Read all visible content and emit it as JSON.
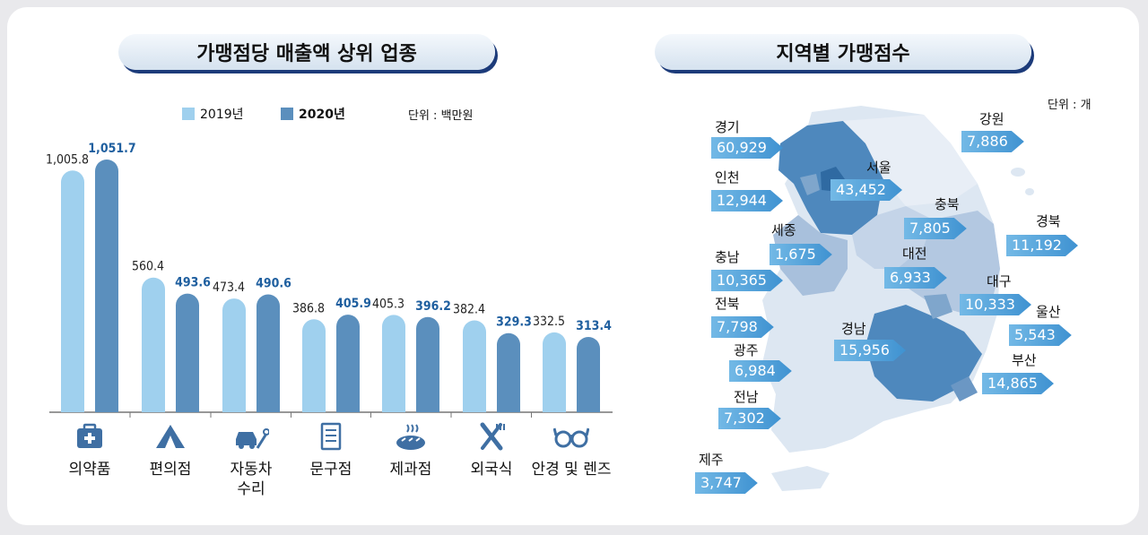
{
  "left_title": "가맹점당 매출액 상위 업종",
  "right_title": "지역별 가맹점수",
  "legend": {
    "y2019": "2019년",
    "y2020": "2020년"
  },
  "left_unit": "단위 : 백만원",
  "right_unit": "단위 : 개",
  "colors": {
    "y2019": "#9fd0ee",
    "y2020": "#5b8fbd",
    "label2020": "#1f5f9f",
    "map_dark": "#4e88bd",
    "map_mid": "#a8c0dc",
    "map_light": "#dde7f2"
  },
  "chart_data": {
    "type": "bar",
    "categories": [
      "의약품",
      "편의점",
      "자동차 수리",
      "문구점",
      "제과점",
      "외국식",
      "안경 및 렌즈"
    ],
    "category_lines": [
      [
        "의약품"
      ],
      [
        "편의점"
      ],
      [
        "자동차",
        "수리"
      ],
      [
        "문구점"
      ],
      [
        "제과점"
      ],
      [
        "외국식"
      ],
      [
        "안경 및 렌즈"
      ]
    ],
    "category_icons": [
      "first-aid-icon",
      "tent-icon",
      "car-repair-icon",
      "notebook-icon",
      "bread-icon",
      "fork-knife-icon",
      "glasses-icon"
    ],
    "series": [
      {
        "name": "2019년",
        "values": [
          1005.8,
          560.4,
          473.4,
          386.8,
          405.3,
          382.4,
          332.5
        ],
        "labels": [
          "1,005.8",
          "560.4",
          "473.4",
          "386.8",
          "405.3",
          "382.4",
          "332.5"
        ]
      },
      {
        "name": "2020년",
        "values": [
          1051.7,
          493.6,
          490.6,
          405.9,
          396.2,
          329.3,
          313.4
        ],
        "labels": [
          "1,051.7",
          "493.6",
          "490.6",
          "405.9",
          "396.2",
          "329.3",
          "313.4"
        ]
      }
    ],
    "unit": "단위 : 백만원"
  },
  "regions": [
    {
      "name": "경기",
      "value": "60,929"
    },
    {
      "name": "인천",
      "value": "12,944"
    },
    {
      "name": "서울",
      "value": "43,452"
    },
    {
      "name": "강원",
      "value": "7,886"
    },
    {
      "name": "충북",
      "value": "7,805"
    },
    {
      "name": "경북",
      "value": "11,192"
    },
    {
      "name": "세종",
      "value": "1,675"
    },
    {
      "name": "충남",
      "value": "10,365"
    },
    {
      "name": "대전",
      "value": "6,933"
    },
    {
      "name": "대구",
      "value": "10,333"
    },
    {
      "name": "전북",
      "value": "7,798"
    },
    {
      "name": "울산",
      "value": "5,543"
    },
    {
      "name": "경남",
      "value": "15,956"
    },
    {
      "name": "광주",
      "value": "6,984"
    },
    {
      "name": "부산",
      "value": "14,865"
    },
    {
      "name": "전남",
      "value": "7,302"
    },
    {
      "name": "제주",
      "value": "3,747"
    }
  ]
}
